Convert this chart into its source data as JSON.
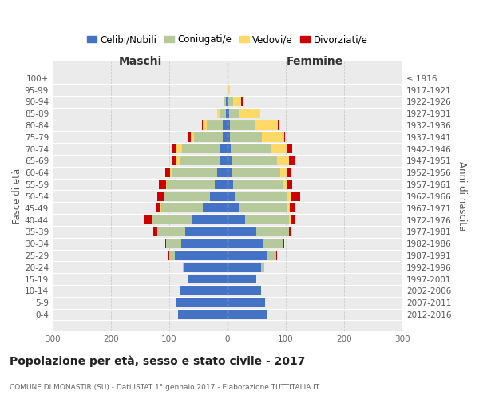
{
  "age_groups": [
    "0-4",
    "5-9",
    "10-14",
    "15-19",
    "20-24",
    "25-29",
    "30-34",
    "35-39",
    "40-44",
    "45-49",
    "50-54",
    "55-59",
    "60-64",
    "65-69",
    "70-74",
    "75-79",
    "80-84",
    "85-89",
    "90-94",
    "95-99",
    "100+"
  ],
  "birth_years": [
    "2012-2016",
    "2007-2011",
    "2002-2006",
    "1997-2001",
    "1992-1996",
    "1987-1991",
    "1982-1986",
    "1977-1981",
    "1972-1976",
    "1967-1971",
    "1962-1966",
    "1957-1961",
    "1952-1956",
    "1947-1951",
    "1942-1946",
    "1937-1941",
    "1932-1936",
    "1927-1931",
    "1922-1926",
    "1917-1921",
    "≤ 1916"
  ],
  "colors": {
    "celibe": "#4472C4",
    "coniugato": "#B5C99A",
    "vedovo": "#FFD966",
    "divorziato": "#CC0000"
  },
  "maschi_celibe": [
    85,
    88,
    82,
    68,
    75,
    90,
    80,
    73,
    62,
    42,
    30,
    22,
    18,
    12,
    13,
    8,
    8,
    3,
    2,
    0,
    0
  ],
  "maschi_coniugato": [
    0,
    0,
    0,
    0,
    2,
    10,
    25,
    48,
    68,
    72,
    78,
    82,
    78,
    70,
    65,
    50,
    28,
    10,
    3,
    0,
    0
  ],
  "maschi_vedovo": [
    0,
    0,
    0,
    0,
    0,
    0,
    0,
    0,
    0,
    1,
    2,
    2,
    3,
    5,
    10,
    5,
    6,
    5,
    2,
    0,
    0
  ],
  "maschi_divorziato": [
    0,
    0,
    0,
    0,
    0,
    2,
    2,
    6,
    12,
    8,
    10,
    12,
    8,
    8,
    6,
    6,
    2,
    0,
    0,
    0,
    0
  ],
  "femmine_celibe": [
    68,
    65,
    58,
    50,
    58,
    68,
    62,
    50,
    30,
    20,
    12,
    10,
    8,
    7,
    5,
    4,
    4,
    3,
    2,
    0,
    0
  ],
  "femmine_coniugato": [
    0,
    0,
    0,
    0,
    5,
    15,
    32,
    55,
    75,
    82,
    90,
    85,
    82,
    78,
    70,
    55,
    42,
    18,
    8,
    2,
    0
  ],
  "femmine_vedovo": [
    0,
    0,
    0,
    0,
    0,
    0,
    0,
    0,
    3,
    5,
    8,
    8,
    12,
    20,
    28,
    38,
    40,
    35,
    14,
    2,
    0
  ],
  "femmine_divorziato": [
    0,
    0,
    0,
    0,
    0,
    2,
    3,
    5,
    8,
    10,
    15,
    8,
    8,
    10,
    8,
    2,
    2,
    0,
    2,
    0,
    0
  ],
  "title": "Popolazione per età, sesso e stato civile - 2017",
  "subtitle": "COMUNE DI MONASTIR (SU) - Dati ISTAT 1° gennaio 2017 - Elaborazione TUTTITALIA.IT",
  "xlabel_left": "Maschi",
  "xlabel_right": "Femmine",
  "ylabel_left": "Fasce di età",
  "ylabel_right": "Anni di nascita",
  "legend_labels": [
    "Celibi/Nubili",
    "Coniugati/e",
    "Vedovi/e",
    "Divorziati/e"
  ],
  "bg_color": "#EBEBEB",
  "grid_color": "#CCCCCC",
  "xlim": 300
}
